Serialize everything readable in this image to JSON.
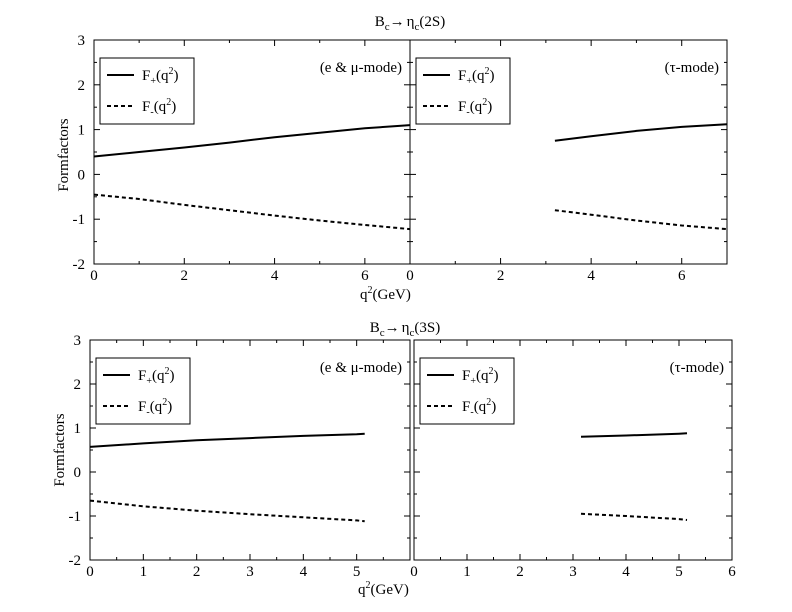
{
  "chart_data": [
    {
      "type": "line",
      "title_parts": {
        "base": "B",
        "base_sub": "c",
        "arrow": "→",
        "target": "η",
        "target_sub": "c",
        "target_rest": "(2S)"
      },
      "ylabel": "Formfactors",
      "xlabel_parts": {
        "q": "q",
        "sup": "2",
        "rest": "(GeV)"
      },
      "panels": [
        {
          "annotation": "(e & μ-mode)",
          "xlim": [
            0,
            7
          ],
          "ylim": [
            -2,
            3
          ],
          "xticks": [
            "0",
            "2",
            "4",
            "6"
          ],
          "xtick_values": [
            0,
            2,
            4,
            6
          ],
          "yticks": [
            "-2",
            "-1",
            "0",
            "1",
            "2",
            "3"
          ],
          "ytick_values": [
            -2,
            -1,
            0,
            1,
            2,
            3
          ],
          "series": [
            {
              "name_parts": {
                "base": "F",
                "sub": "+",
                "rest": "(q",
                "sup": "2",
                "end": ")"
              },
              "style": "solid",
              "x": [
                0,
                1,
                2,
                3,
                4,
                5,
                6,
                7
              ],
              "y": [
                0.4,
                0.5,
                0.6,
                0.71,
                0.83,
                0.93,
                1.03,
                1.1
              ]
            },
            {
              "name_parts": {
                "base": "F",
                "sub": "-",
                "rest": "(q",
                "sup": "2",
                "end": ")"
              },
              "style": "dashed",
              "x": [
                0,
                1,
                2,
                3,
                4,
                5,
                6,
                7
              ],
              "y": [
                -0.45,
                -0.55,
                -0.68,
                -0.8,
                -0.92,
                -1.03,
                -1.13,
                -1.22
              ]
            }
          ]
        },
        {
          "annotation": "(τ-mode)",
          "xlim": [
            0,
            7
          ],
          "ylim": [
            -2,
            3
          ],
          "xticks": [
            "0",
            "2",
            "4",
            "6"
          ],
          "xtick_values": [
            0,
            2,
            4,
            6
          ],
          "series": [
            {
              "name_parts": {
                "base": "F",
                "sub": "+",
                "rest": "(q",
                "sup": "2",
                "end": ")"
              },
              "style": "solid",
              "x": [
                3.2,
                4,
                5,
                6,
                7
              ],
              "y": [
                0.75,
                0.85,
                0.97,
                1.06,
                1.12
              ]
            },
            {
              "name_parts": {
                "base": "F",
                "sub": "-",
                "rest": "(q",
                "sup": "2",
                "end": ")"
              },
              "style": "dashed",
              "x": [
                3.2,
                4,
                5,
                6,
                7
              ],
              "y": [
                -0.8,
                -0.9,
                -1.03,
                -1.14,
                -1.22
              ]
            }
          ]
        }
      ]
    },
    {
      "type": "line",
      "title_parts": {
        "base": "B",
        "base_sub": "c",
        "arrow": "→",
        "target": "η",
        "target_sub": "c",
        "target_rest": "(3S)"
      },
      "ylabel": "Formfactors",
      "xlabel_parts": {
        "q": "q",
        "sup": "2",
        "rest": "(GeV)"
      },
      "panels": [
        {
          "annotation": "(e & μ-mode)",
          "xlim": [
            0,
            6
          ],
          "ylim": [
            -2,
            3
          ],
          "xticks": [
            "0",
            "1",
            "2",
            "3",
            "4",
            "5"
          ],
          "xtick_values": [
            0,
            1,
            2,
            3,
            4,
            5
          ],
          "yticks": [
            "-2",
            "-1",
            "0",
            "1",
            "2",
            "3"
          ],
          "ytick_values": [
            -2,
            -1,
            0,
            1,
            2,
            3
          ],
          "series": [
            {
              "name_parts": {
                "base": "F",
                "sub": "+",
                "rest": "(q",
                "sup": "2",
                "end": ")"
              },
              "style": "solid",
              "x": [
                0,
                1,
                2,
                3,
                4,
                5,
                5.15
              ],
              "y": [
                0.57,
                0.65,
                0.72,
                0.77,
                0.82,
                0.86,
                0.87
              ]
            },
            {
              "name_parts": {
                "base": "F",
                "sub": "-",
                "rest": "(q",
                "sup": "2",
                "end": ")"
              },
              "style": "dashed",
              "x": [
                0,
                1,
                2,
                3,
                4,
                5,
                5.15
              ],
              "y": [
                -0.65,
                -0.78,
                -0.88,
                -0.96,
                -1.03,
                -1.1,
                -1.12
              ]
            }
          ]
        },
        {
          "annotation": "(τ-mode)",
          "xlim": [
            0,
            6
          ],
          "ylim": [
            -2,
            3
          ],
          "xticks": [
            "0",
            "1",
            "2",
            "3",
            "4",
            "5",
            "6"
          ],
          "xtick_values": [
            0,
            1,
            2,
            3,
            4,
            5,
            6
          ],
          "series": [
            {
              "name_parts": {
                "base": "F",
                "sub": "+",
                "rest": "(q",
                "sup": "2",
                "end": ")"
              },
              "style": "solid",
              "x": [
                3.15,
                4,
                5,
                5.15
              ],
              "y": [
                0.8,
                0.83,
                0.87,
                0.88
              ]
            },
            {
              "name_parts": {
                "base": "F",
                "sub": "-",
                "rest": "(q",
                "sup": "2",
                "end": ")"
              },
              "style": "dashed",
              "x": [
                3.15,
                4,
                5,
                5.15
              ],
              "y": [
                -0.95,
                -1.0,
                -1.07,
                -1.09
              ]
            }
          ]
        }
      ]
    }
  ]
}
